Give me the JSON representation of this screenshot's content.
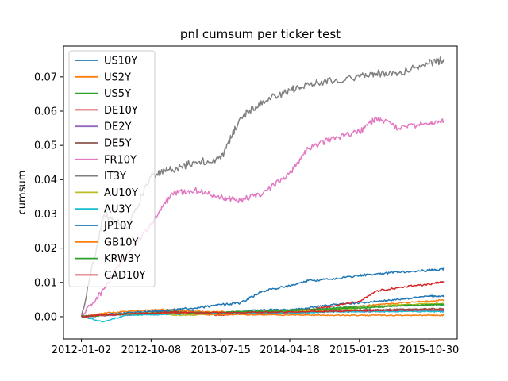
{
  "chart_data": {
    "type": "line",
    "title": "pnl cumsum per ticker test",
    "xlabel": "",
    "ylabel": "cumsum",
    "x_tick_labels": [
      "2012-01-02",
      "2012-10-08",
      "2013-07-15",
      "2014-04-18",
      "2015-01-23",
      "2015-10-30"
    ],
    "x_dates": [
      "2012-01-02",
      "2012-04-01",
      "2012-07-01",
      "2012-10-08",
      "2013-01-01",
      "2013-04-01",
      "2013-07-15",
      "2013-10-01",
      "2014-01-01",
      "2014-04-18",
      "2014-07-01",
      "2014-10-01",
      "2015-01-23",
      "2015-04-01",
      "2015-07-01",
      "2015-10-30",
      "2015-12-31"
    ],
    "y_ticks": [
      0.0,
      0.01,
      0.02,
      0.03,
      0.04,
      0.05,
      0.06,
      0.07
    ],
    "y_tick_labels": [
      "0.00",
      "0.01",
      "0.02",
      "0.03",
      "0.04",
      "0.05",
      "0.06",
      "0.07"
    ],
    "ylim": [
      -0.0065,
      0.079
    ],
    "grid": false,
    "legend_position": "top-left",
    "series": [
      {
        "name": "US10Y",
        "color": "#1f77b4",
        "values": [
          0.0,
          0.0005,
          0.001,
          0.0015,
          0.002,
          0.0015,
          0.001,
          0.0015,
          0.002,
          0.002,
          0.0025,
          0.0035,
          0.004,
          0.0045,
          0.005,
          0.006,
          0.006
        ]
      },
      {
        "name": "US2Y",
        "color": "#ff7f0e",
        "values": [
          0.0,
          0.001,
          0.0015,
          0.002,
          0.002,
          0.0015,
          0.0015,
          0.001,
          0.001,
          0.001,
          0.0015,
          0.002,
          0.003,
          0.0035,
          0.004,
          0.0045,
          0.0048
        ]
      },
      {
        "name": "US5Y",
        "color": "#2ca02c",
        "values": [
          0.0,
          0.0005,
          0.001,
          0.0012,
          0.0015,
          0.001,
          0.0012,
          0.0015,
          0.0015,
          0.002,
          0.002,
          0.0025,
          0.003,
          0.003,
          0.0032,
          0.0035,
          0.0035
        ]
      },
      {
        "name": "DE10Y",
        "color": "#d62728",
        "values": [
          0.0,
          0.0005,
          0.001,
          0.0012,
          0.0015,
          0.001,
          0.0005,
          0.0008,
          0.001,
          0.0015,
          0.002,
          0.003,
          0.0045,
          0.0075,
          0.0085,
          0.0095,
          0.0102
        ]
      },
      {
        "name": "DE2Y",
        "color": "#9467bd",
        "values": [
          0.0,
          0.0003,
          0.0005,
          0.0007,
          0.001,
          0.0008,
          0.0008,
          0.001,
          0.001,
          0.0012,
          0.0012,
          0.0015,
          0.0015,
          0.0015,
          0.0017,
          0.0018,
          0.0018
        ]
      },
      {
        "name": "DE5Y",
        "color": "#8c564b",
        "values": [
          0.0,
          0.0005,
          0.0008,
          0.001,
          0.0012,
          0.001,
          0.001,
          0.0012,
          0.0012,
          0.0015,
          0.0015,
          0.0018,
          0.002,
          0.002,
          0.0022,
          0.0023,
          0.0023
        ]
      },
      {
        "name": "FR10Y",
        "color": "#e377c2",
        "values": [
          0.0,
          0.008,
          0.018,
          0.027,
          0.036,
          0.037,
          0.035,
          0.034,
          0.036,
          0.042,
          0.049,
          0.052,
          0.054,
          0.058,
          0.055,
          0.0565,
          0.057
        ]
      },
      {
        "name": "IT3Y",
        "color": "#7f7f7f",
        "values": [
          0.0,
          0.03,
          0.026,
          0.041,
          0.043,
          0.045,
          0.046,
          0.058,
          0.063,
          0.066,
          0.068,
          0.069,
          0.07,
          0.071,
          0.071,
          0.074,
          0.075
        ]
      },
      {
        "name": "AU10Y",
        "color": "#bcbd22",
        "values": [
          0.0,
          0.0005,
          0.001,
          0.0012,
          0.0005,
          0.0005,
          0.0008,
          0.001,
          0.0012,
          0.0015,
          0.0018,
          0.002,
          0.0025,
          0.003,
          0.0035,
          0.0038,
          0.0038
        ]
      },
      {
        "name": "AU3Y",
        "color": "#17becf",
        "values": [
          0.0,
          -0.0015,
          0.0005,
          0.0005,
          0.0008,
          0.0008,
          0.001,
          0.001,
          0.0012,
          0.0012,
          0.0012,
          0.0014,
          0.0015,
          0.0015,
          0.0015,
          0.0015,
          0.0015
        ]
      },
      {
        "name": "JP10Y",
        "color": "#1f77b4",
        "values": [
          0.0,
          0.0005,
          0.001,
          0.0015,
          0.002,
          0.0025,
          0.0035,
          0.004,
          0.0075,
          0.009,
          0.0105,
          0.011,
          0.012,
          0.0125,
          0.013,
          0.0135,
          0.014
        ]
      },
      {
        "name": "GB10Y",
        "color": "#ff7f0e",
        "values": [
          0.0,
          0.0005,
          0.0008,
          0.001,
          0.001,
          0.0008,
          0.0006,
          0.0006,
          0.0005,
          0.0005,
          0.0005,
          0.0004,
          0.0004,
          0.0004,
          0.0004,
          0.0004,
          0.0004
        ]
      },
      {
        "name": "KRW3Y",
        "color": "#2ca02c",
        "values": [
          0.0,
          0.0005,
          0.0008,
          0.001,
          0.0012,
          0.0012,
          0.0012,
          0.0015,
          0.0015,
          0.0018,
          0.002,
          0.0022,
          0.0025,
          0.0028,
          0.0032,
          0.0035,
          0.0035
        ]
      },
      {
        "name": "CAD10Y",
        "color": "#d62728",
        "values": [
          0.0,
          0.0005,
          0.0008,
          0.001,
          0.0012,
          0.0012,
          0.0012,
          0.0012,
          0.0013,
          0.0014,
          0.0015,
          0.0016,
          0.0017,
          0.0018,
          0.0019,
          0.002,
          0.002
        ]
      }
    ]
  }
}
